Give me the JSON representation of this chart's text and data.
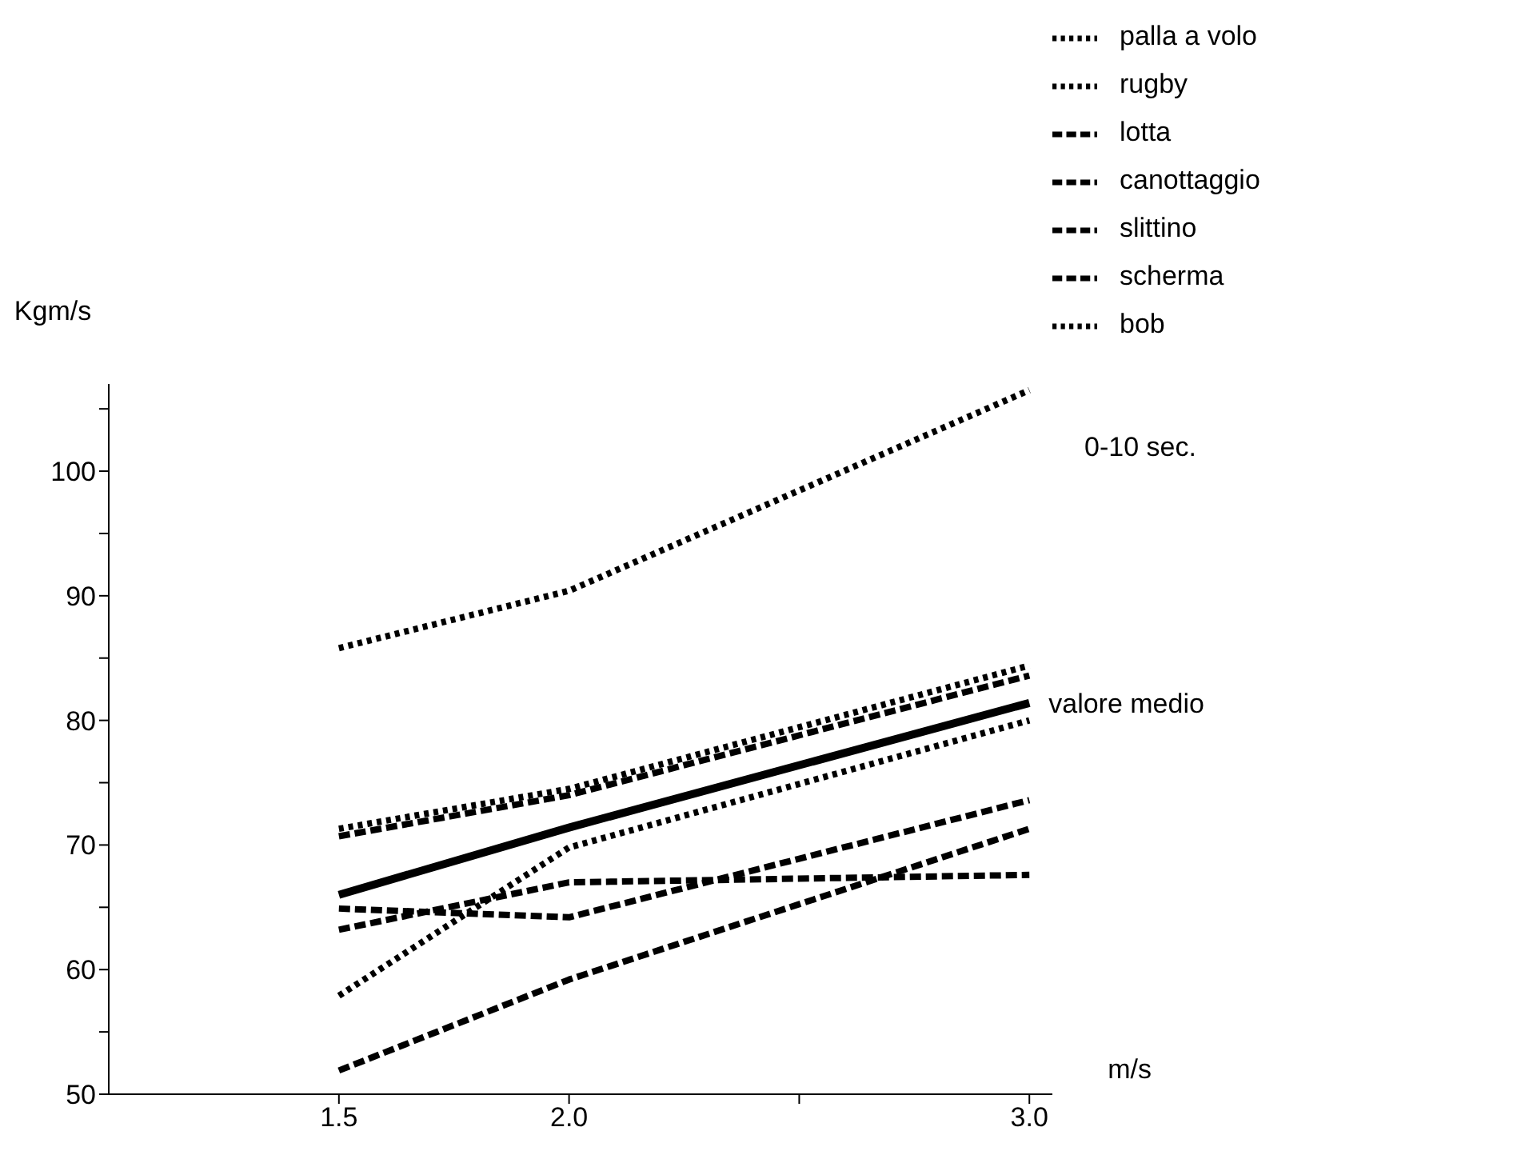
{
  "chart_data": {
    "type": "line",
    "xlabel": "m/s",
    "ylabel": "Kgm/s",
    "x": [
      1.5,
      2.0,
      3.0
    ],
    "xlim": [
      1.0,
      3.05
    ],
    "xticks": [
      {
        "value": 1.5,
        "label": "1.5"
      },
      {
        "value": 2.0,
        "label": "2.0"
      },
      {
        "value": 2.5,
        "label": null
      },
      {
        "value": 3.0,
        "label": "3.0"
      }
    ],
    "ylim": [
      50,
      107
    ],
    "yticks": [
      50,
      {
        "value": 55,
        "label": null
      },
      60,
      {
        "value": 65,
        "label": null
      },
      70,
      {
        "value": 75,
        "label": null
      },
      80,
      {
        "value": 85,
        "label": null
      },
      90,
      {
        "value": 95,
        "label": null
      },
      100,
      {
        "value": 105,
        "label": null
      }
    ],
    "legend": "top right",
    "marker": "none",
    "series": [
      {
        "name": "palla a volo",
        "color": "#000000",
        "line_style": "dotted",
        "values": [
          57.9,
          69.8,
          80.0
        ]
      },
      {
        "name": "rugby",
        "color": "#000000",
        "line_style": "dotted",
        "values": [
          71.3,
          74.5,
          84.4
        ]
      },
      {
        "name": "lotta",
        "color": "#000000",
        "line_style": "dashed",
        "values": [
          63.2,
          67.0,
          67.6
        ]
      },
      {
        "name": "canottaggio",
        "color": "#000000",
        "line_style": "dashed",
        "values": [
          70.7,
          74.0,
          83.6
        ]
      },
      {
        "name": "slittino",
        "color": "#000000",
        "line_style": "dashed",
        "values": [
          51.9,
          59.2,
          71.3
        ]
      },
      {
        "name": "scherma",
        "color": "#000000",
        "line_style": "dashed",
        "values": [
          64.9,
          64.2,
          73.6
        ]
      },
      {
        "name": "bob",
        "color": "#000000",
        "line_style": "dotted",
        "values": [
          85.8,
          90.4,
          106.5
        ]
      },
      {
        "color": "#000000",
        "line_style": "solid",
        "values": [
          66.0,
          71.4,
          81.4
        ]
      }
    ],
    "annotations": [
      "0-10 sec.",
      {
        "text": "valore medio",
        "x": 3.0,
        "y": 81.4
      }
    ]
  }
}
